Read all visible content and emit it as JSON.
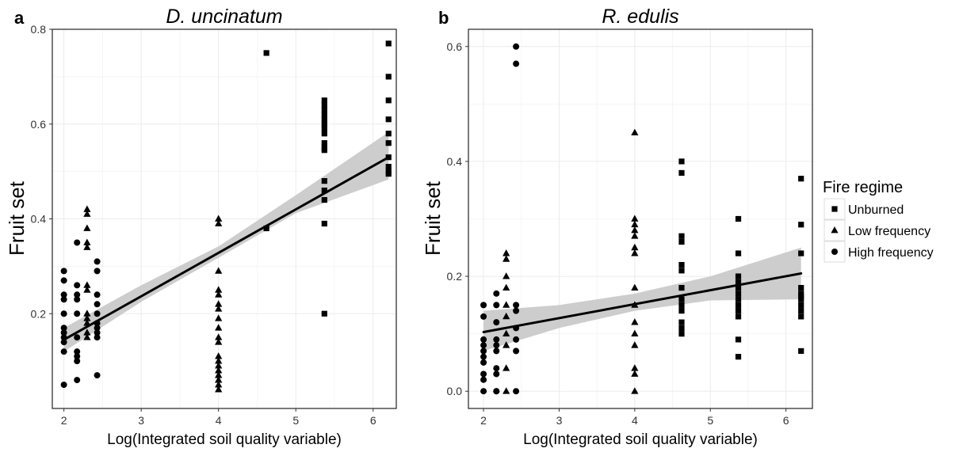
{
  "chart_data": [
    {
      "type": "scatter",
      "panel_label": "a",
      "title": "D. uncinatum",
      "xlabel": "Log(Integrated soil quality variable)",
      "ylabel": "Fruit set",
      "xlim": [
        1.85,
        6.3
      ],
      "ylim": [
        0.0,
        0.8
      ],
      "xticks": [
        "2",
        "3",
        "4",
        "5",
        "6"
      ],
      "yticks": [
        "0.2",
        "0.4",
        "0.6",
        "0.8"
      ],
      "grid": true,
      "fit_line": {
        "x": [
          2.0,
          6.2
        ],
        "y": [
          0.145,
          0.53
        ]
      },
      "confidence_band": {
        "x": [
          2.0,
          3.0,
          4.0,
          5.0,
          6.2
        ],
        "lower": [
          0.12,
          0.225,
          0.318,
          0.412,
          0.483
        ],
        "upper": [
          0.17,
          0.26,
          0.342,
          0.45,
          0.583
        ]
      },
      "series": [
        {
          "name": "Unburned",
          "marker": "square",
          "x": [
            4.62,
            4.62,
            5.37,
            5.37,
            5.37,
            5.37,
            5.37,
            5.37,
            5.37,
            5.37,
            5.37,
            5.37,
            5.37,
            5.37,
            5.37,
            5.37,
            5.37,
            5.37,
            6.2,
            6.2,
            6.2,
            6.2,
            6.2,
            6.2,
            6.2,
            6.2,
            6.2,
            6.2
          ],
          "y": [
            0.75,
            0.38,
            0.65,
            0.64,
            0.63,
            0.62,
            0.61,
            0.6,
            0.59,
            0.58,
            0.56,
            0.55,
            0.48,
            0.46,
            0.44,
            0.39,
            0.2,
            0.545,
            0.77,
            0.7,
            0.65,
            0.61,
            0.58,
            0.56,
            0.53,
            0.51,
            0.5,
            0.495
          ]
        },
        {
          "name": "Low frequency",
          "marker": "triangle",
          "x": [
            2.3,
            2.3,
            2.3,
            2.3,
            2.3,
            2.3,
            2.3,
            2.3,
            2.3,
            2.3,
            2.3,
            2.3,
            4.0,
            4.0,
            4.0,
            4.0,
            4.0,
            4.0,
            4.0,
            4.0,
            4.0,
            4.0,
            4.0,
            4.0,
            4.0,
            4.0,
            4.0,
            4.0,
            4.0,
            4.0,
            4.0,
            4.0,
            4.0
          ],
          "y": [
            0.42,
            0.41,
            0.38,
            0.35,
            0.34,
            0.26,
            0.25,
            0.2,
            0.19,
            0.18,
            0.16,
            0.15,
            0.4,
            0.39,
            0.29,
            0.25,
            0.24,
            0.22,
            0.21,
            0.19,
            0.17,
            0.15,
            0.14,
            0.11,
            0.1,
            0.09,
            0.08,
            0.07,
            0.07,
            0.06,
            0.06,
            0.05,
            0.04
          ]
        },
        {
          "name": "High frequency",
          "marker": "circle",
          "x": [
            2.0,
            2.0,
            2.0,
            2.0,
            2.0,
            2.0,
            2.0,
            2.0,
            2.0,
            2.0,
            2.0,
            2.17,
            2.17,
            2.17,
            2.17,
            2.17,
            2.17,
            2.17,
            2.17,
            2.17,
            2.17,
            2.43,
            2.43,
            2.43,
            2.43,
            2.43,
            2.43,
            2.43,
            2.43,
            2.43,
            2.43
          ],
          "y": [
            0.29,
            0.27,
            0.24,
            0.23,
            0.2,
            0.17,
            0.16,
            0.15,
            0.14,
            0.12,
            0.05,
            0.35,
            0.26,
            0.24,
            0.23,
            0.2,
            0.15,
            0.12,
            0.11,
            0.1,
            0.06,
            0.31,
            0.29,
            0.24,
            0.22,
            0.2,
            0.18,
            0.17,
            0.16,
            0.15,
            0.07
          ]
        }
      ]
    },
    {
      "type": "scatter",
      "panel_label": "b",
      "title": "R. edulis",
      "xlabel": "Log(Integrated soil quality variable)",
      "ylabel": "Fruit set",
      "xlim": [
        1.8,
        6.35
      ],
      "ylim": [
        -0.03,
        0.63
      ],
      "xticks": [
        "2",
        "3",
        "4",
        "5",
        "6"
      ],
      "yticks": [
        "0.0",
        "0.2",
        "0.4",
        "0.6"
      ],
      "grid": true,
      "fit_line": {
        "x": [
          2.0,
          6.2
        ],
        "y": [
          0.103,
          0.205
        ]
      },
      "confidence_band": {
        "x": [
          2.0,
          3.0,
          4.0,
          5.0,
          6.2
        ],
        "lower": [
          0.07,
          0.11,
          0.14,
          0.158,
          0.16
        ],
        "upper": [
          0.14,
          0.15,
          0.17,
          0.2,
          0.25
        ]
      },
      "series": [
        {
          "name": "Unburned",
          "marker": "square",
          "x": [
            4.62,
            4.62,
            4.62,
            4.62,
            4.62,
            4.62,
            4.62,
            4.62,
            4.62,
            4.62,
            4.62,
            4.62,
            4.62,
            5.37,
            5.37,
            5.37,
            5.37,
            5.37,
            5.37,
            5.37,
            5.37,
            5.37,
            5.37,
            5.37,
            5.37,
            6.2,
            6.2,
            6.2,
            6.2,
            6.2,
            6.2,
            6.2,
            6.2,
            6.2,
            6.2,
            6.2
          ],
          "y": [
            0.4,
            0.38,
            0.27,
            0.26,
            0.22,
            0.21,
            0.18,
            0.16,
            0.15,
            0.14,
            0.12,
            0.11,
            0.1,
            0.3,
            0.24,
            0.2,
            0.19,
            0.18,
            0.17,
            0.16,
            0.15,
            0.14,
            0.13,
            0.09,
            0.06,
            0.37,
            0.29,
            0.24,
            0.18,
            0.17,
            0.165,
            0.16,
            0.15,
            0.14,
            0.13,
            0.07
          ]
        },
        {
          "name": "Low frequency",
          "marker": "triangle",
          "x": [
            2.3,
            2.3,
            2.3,
            2.3,
            2.3,
            2.3,
            2.3,
            2.3,
            2.3,
            2.3,
            4.0,
            4.0,
            4.0,
            4.0,
            4.0,
            4.0,
            4.0,
            4.0,
            4.0,
            4.0,
            4.0,
            4.0,
            4.0,
            4.0,
            4.0
          ],
          "y": [
            0.24,
            0.23,
            0.2,
            0.18,
            0.15,
            0.13,
            0.1,
            0.08,
            0.04,
            0.0,
            0.45,
            0.3,
            0.29,
            0.28,
            0.27,
            0.25,
            0.24,
            0.18,
            0.15,
            0.12,
            0.1,
            0.08,
            0.04,
            0.03,
            0.0
          ]
        },
        {
          "name": "High frequency",
          "marker": "circle",
          "x": [
            2.0,
            2.0,
            2.0,
            2.0,
            2.0,
            2.0,
            2.0,
            2.0,
            2.0,
            2.0,
            2.17,
            2.17,
            2.17,
            2.17,
            2.17,
            2.17,
            2.17,
            2.17,
            2.17,
            2.17,
            2.43,
            2.43,
            2.43,
            2.43,
            2.43,
            2.43,
            2.43,
            2.43
          ],
          "y": [
            0.15,
            0.13,
            0.09,
            0.08,
            0.07,
            0.06,
            0.05,
            0.03,
            0.02,
            0.0,
            0.17,
            0.15,
            0.12,
            0.09,
            0.08,
            0.07,
            0.04,
            0.03,
            0.0,
            0.0,
            0.6,
            0.57,
            0.15,
            0.14,
            0.11,
            0.09,
            0.07,
            0.0
          ]
        }
      ]
    }
  ],
  "legend": {
    "title": "Fire regime",
    "items": [
      {
        "label": "Unburned",
        "marker": "square"
      },
      {
        "label": "Low frequency",
        "marker": "triangle"
      },
      {
        "label": "High frequency",
        "marker": "circle"
      }
    ],
    "placement": "right"
  },
  "colors": {
    "points": "#000000",
    "band": "#c8c8c8",
    "grid": "#ebebeb",
    "panel_border": "#333333"
  }
}
